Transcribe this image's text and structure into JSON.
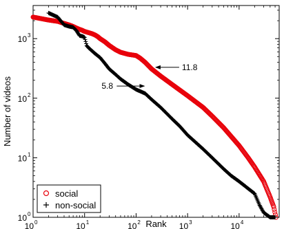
{
  "chart_data": {
    "type": "scatter",
    "xlabel": "Rank",
    "ylabel": "Number of videos",
    "xscale": "log",
    "yscale": "log",
    "xlim": [
      1,
      60000
    ],
    "ylim": [
      1,
      3600
    ],
    "x_ticks": [
      {
        "base": "10",
        "exp": "0"
      },
      {
        "base": "10",
        "exp": "1"
      },
      {
        "base": "10",
        "exp": "2"
      },
      {
        "base": "10",
        "exp": "3"
      },
      {
        "base": "10",
        "exp": "4"
      }
    ],
    "y_ticks": [
      {
        "base": "10",
        "exp": "0"
      },
      {
        "base": "10",
        "exp": "1"
      },
      {
        "base": "10",
        "exp": "2"
      },
      {
        "base": "10",
        "exp": "3"
      }
    ],
    "grid": false,
    "legend_position": "lower-left",
    "series": [
      {
        "name": "social",
        "marker": "circle",
        "color": "#e8000b",
        "points": [
          [
            1,
            2300
          ],
          [
            2,
            2050
          ],
          [
            3,
            1950
          ],
          [
            4,
            1800
          ],
          [
            5,
            1700
          ],
          [
            6,
            1600
          ],
          [
            7,
            1500
          ],
          [
            8,
            1430
          ],
          [
            9,
            1380
          ],
          [
            10,
            1320
          ],
          [
            12,
            1260
          ],
          [
            14,
            1210
          ],
          [
            16,
            1150
          ],
          [
            18,
            1080
          ],
          [
            20,
            1000
          ],
          [
            25,
            880
          ],
          [
            30,
            770
          ],
          [
            40,
            650
          ],
          [
            50,
            590
          ],
          [
            70,
            545
          ],
          [
            100,
            520
          ],
          [
            120,
            470
          ],
          [
            150,
            400
          ],
          [
            200,
            310
          ],
          [
            300,
            235
          ],
          [
            500,
            170
          ],
          [
            1000,
            110
          ],
          [
            2000,
            70
          ],
          [
            3000,
            50
          ],
          [
            5000,
            32
          ],
          [
            8000,
            20
          ],
          [
            10000,
            16
          ],
          [
            15000,
            10
          ],
          [
            20000,
            7
          ],
          [
            30000,
            4
          ],
          [
            40000,
            2.2
          ],
          [
            47000,
            1.5
          ],
          [
            52000,
            1
          ]
        ]
      },
      {
        "name": "non-social",
        "marker": "plus",
        "color": "#000000",
        "points": [
          [
            2,
            2700
          ],
          [
            3,
            2300
          ],
          [
            4,
            1700
          ],
          [
            5,
            1600
          ],
          [
            6,
            1550
          ],
          [
            7,
            1350
          ],
          [
            8,
            1120
          ],
          [
            9,
            1100
          ],
          [
            10,
            1050
          ],
          [
            11,
            760
          ],
          [
            12,
            700
          ],
          [
            14,
            620
          ],
          [
            16,
            560
          ],
          [
            20,
            480
          ],
          [
            25,
            380
          ],
          [
            30,
            310
          ],
          [
            40,
            250
          ],
          [
            50,
            210
          ],
          [
            70,
            170
          ],
          [
            100,
            140
          ],
          [
            150,
            120
          ],
          [
            200,
            95
          ],
          [
            300,
            70
          ],
          [
            500,
            45
          ],
          [
            700,
            34
          ],
          [
            1000,
            24
          ],
          [
            2000,
            14
          ],
          [
            3000,
            10
          ],
          [
            5000,
            6.5
          ],
          [
            7000,
            5
          ],
          [
            10000,
            4
          ],
          [
            20000,
            2.5
          ],
          [
            25000,
            1.6
          ],
          [
            30000,
            1.2
          ],
          [
            40000,
            1
          ],
          [
            50000,
            1
          ]
        ]
      }
    ],
    "annotations": [
      {
        "text": "11.8",
        "point": [
          200,
          330
        ]
      },
      {
        "text": "5.8",
        "point": [
          120,
          160
        ]
      }
    ]
  }
}
